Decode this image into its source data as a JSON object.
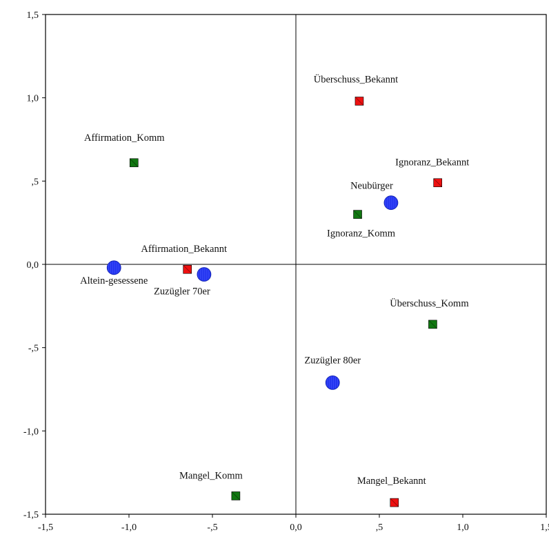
{
  "chart_data": {
    "type": "scatter",
    "xlim": [
      -1.5,
      1.5
    ],
    "ylim": [
      -1.5,
      1.5
    ],
    "x_ticks": [
      {
        "value": -1.5,
        "label": "-1,5"
      },
      {
        "value": -1.0,
        "label": "-1,0"
      },
      {
        "value": -0.5,
        "label": "-,5"
      },
      {
        "value": 0.0,
        "label": "0,0"
      },
      {
        "value": 0.5,
        "label": ",5"
      },
      {
        "value": 1.0,
        "label": "1,0"
      },
      {
        "value": 1.5,
        "label": "1,5"
      }
    ],
    "y_ticks": [
      {
        "value": 1.5,
        "label": "1,5"
      },
      {
        "value": 1.0,
        "label": "1,0"
      },
      {
        "value": 0.5,
        "label": ",5"
      },
      {
        "value": 0.0,
        "label": "0,0"
      },
      {
        "value": -0.5,
        "label": "-,5"
      },
      {
        "value": -1.0,
        "label": "-1,0"
      },
      {
        "value": -1.5,
        "label": "-1,5"
      }
    ],
    "reference_lines": {
      "x": 0,
      "y": 0
    },
    "grid": false,
    "colors": {
      "group_circle": "#2233ee",
      "bekannt_square": "#ee1111",
      "komm_square": "#117711"
    },
    "series": [
      {
        "marker": "circle",
        "color": "#2233ee",
        "points": [
          {
            "label": "Neubürger",
            "x": 0.57,
            "y": 0.37
          },
          {
            "label": "Altein-gesessene",
            "x": -1.09,
            "y": -0.02
          },
          {
            "label": "Zuzügler 70er",
            "x": -0.55,
            "y": -0.06
          },
          {
            "label": "Zuzügler 80er",
            "x": 0.22,
            "y": -0.71
          }
        ]
      },
      {
        "marker": "square",
        "color": "#ee1111",
        "points": [
          {
            "label": "Überschuss_Bekannt",
            "x": 0.38,
            "y": 0.98
          },
          {
            "label": "Ignoranz_Bekannt",
            "x": 0.85,
            "y": 0.49
          },
          {
            "label": "Affirmation_Bekannt",
            "x": -0.65,
            "y": -0.03
          },
          {
            "label": "Mangel_Bekannt",
            "x": 0.59,
            "y": -1.43
          }
        ]
      },
      {
        "marker": "square",
        "color": "#117711",
        "points": [
          {
            "label": "Affirmation_Komm",
            "x": -0.97,
            "y": 0.61
          },
          {
            "label": "Ignoranz_Komm",
            "x": 0.37,
            "y": 0.3
          },
          {
            "label": "Überschuss_Komm",
            "x": 0.82,
            "y": -0.36
          },
          {
            "label": "Mangel_Komm",
            "x": -0.36,
            "y": -1.39
          }
        ]
      }
    ]
  }
}
